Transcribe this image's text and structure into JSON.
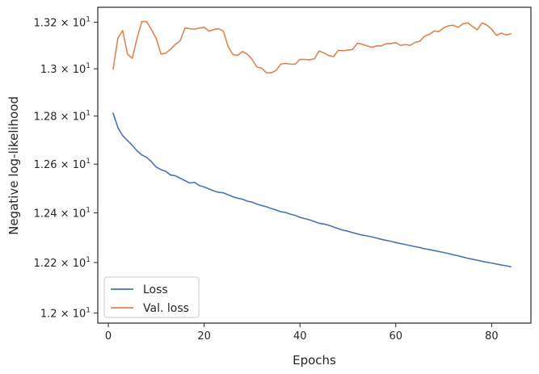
{
  "chart_data": {
    "type": "line",
    "title": "",
    "xlabel": "Epochs",
    "ylabel": "Negative log-likelihood",
    "xlim": [
      -2.2,
      88.2
    ],
    "ylim": [
      11.96,
      13.265
    ],
    "yscale": "log",
    "grid": false,
    "legend_position": "lower-left",
    "x_ticks": [
      {
        "value": 0,
        "label": "0"
      },
      {
        "value": 20,
        "label": "20"
      },
      {
        "value": 40,
        "label": "40"
      },
      {
        "value": 60,
        "label": "60"
      },
      {
        "value": 80,
        "label": "80"
      }
    ],
    "y_ticks": [
      {
        "value": 12.0,
        "mantissa": "1.2",
        "base": "10",
        "exp": "1"
      },
      {
        "value": 12.2,
        "mantissa": "1.22",
        "base": "10",
        "exp": "1"
      },
      {
        "value": 12.4,
        "mantissa": "1.24",
        "base": "10",
        "exp": "1"
      },
      {
        "value": 12.6,
        "mantissa": "1.26",
        "base": "10",
        "exp": "1"
      },
      {
        "value": 12.8,
        "mantissa": "1.28",
        "base": "10",
        "exp": "1"
      },
      {
        "value": 13.0,
        "mantissa": "1.3",
        "base": "10",
        "exp": "1"
      },
      {
        "value": 13.2,
        "mantissa": "1.32",
        "base": "10",
        "exp": "1"
      }
    ],
    "x": [
      1,
      2,
      3,
      4,
      5,
      6,
      7,
      8,
      9,
      10,
      11,
      12,
      13,
      14,
      15,
      16,
      17,
      18,
      19,
      20,
      21,
      22,
      23,
      24,
      25,
      26,
      27,
      28,
      29,
      30,
      31,
      32,
      33,
      34,
      35,
      36,
      37,
      38,
      39,
      40,
      41,
      42,
      43,
      44,
      45,
      46,
      47,
      48,
      49,
      50,
      51,
      52,
      53,
      54,
      55,
      56,
      57,
      58,
      59,
      60,
      61,
      62,
      63,
      64,
      65,
      66,
      67,
      68,
      69,
      70,
      71,
      72,
      73,
      74,
      75,
      76,
      77,
      78,
      79,
      80,
      81,
      82,
      83,
      84
    ],
    "series": [
      {
        "name": "Loss",
        "color": "#4c72b0",
        "values": [
          12.812,
          12.752,
          12.718,
          12.698,
          12.678,
          12.655,
          12.638,
          12.628,
          12.61,
          12.588,
          12.577,
          12.57,
          12.555,
          12.552,
          12.542,
          12.532,
          12.522,
          12.525,
          12.512,
          12.506,
          12.498,
          12.49,
          12.484,
          12.482,
          12.474,
          12.466,
          12.46,
          12.456,
          12.448,
          12.444,
          12.436,
          12.43,
          12.425,
          12.418,
          12.412,
          12.405,
          12.402,
          12.395,
          12.39,
          12.382,
          12.377,
          12.372,
          12.365,
          12.358,
          12.355,
          12.35,
          12.343,
          12.336,
          12.33,
          12.326,
          12.32,
          12.315,
          12.31,
          12.307,
          12.303,
          12.298,
          12.293,
          12.289,
          12.285,
          12.28,
          12.276,
          12.272,
          12.268,
          12.264,
          12.26,
          12.255,
          12.252,
          12.248,
          12.244,
          12.24,
          12.236,
          12.231,
          12.227,
          12.222,
          12.217,
          12.213,
          12.209,
          12.205,
          12.201,
          12.198,
          12.194,
          12.19,
          12.187,
          12.183
        ]
      },
      {
        "name": "Val. loss",
        "color": "#dd8452",
        "values": [
          12.998,
          13.132,
          13.164,
          13.063,
          13.045,
          13.131,
          13.203,
          13.203,
          13.168,
          13.13,
          13.063,
          13.067,
          13.083,
          13.105,
          13.12,
          13.175,
          13.172,
          13.17,
          13.175,
          13.178,
          13.162,
          13.168,
          13.172,
          13.162,
          13.096,
          13.061,
          13.057,
          13.074,
          13.063,
          13.04,
          13.008,
          13.003,
          12.983,
          12.983,
          12.993,
          13.02,
          13.023,
          13.02,
          13.02,
          13.04,
          13.04,
          13.038,
          13.043,
          13.076,
          13.068,
          13.057,
          13.052,
          13.079,
          13.077,
          13.08,
          13.083,
          13.11,
          13.105,
          13.098,
          13.092,
          13.098,
          13.098,
          13.108,
          13.108,
          13.112,
          13.1,
          13.104,
          13.1,
          13.113,
          13.118,
          13.14,
          13.148,
          13.162,
          13.16,
          13.176,
          13.185,
          13.187,
          13.178,
          13.193,
          13.198,
          13.182,
          13.167,
          13.197,
          13.188,
          13.17,
          13.143,
          13.153,
          13.145,
          13.15
        ]
      }
    ]
  }
}
